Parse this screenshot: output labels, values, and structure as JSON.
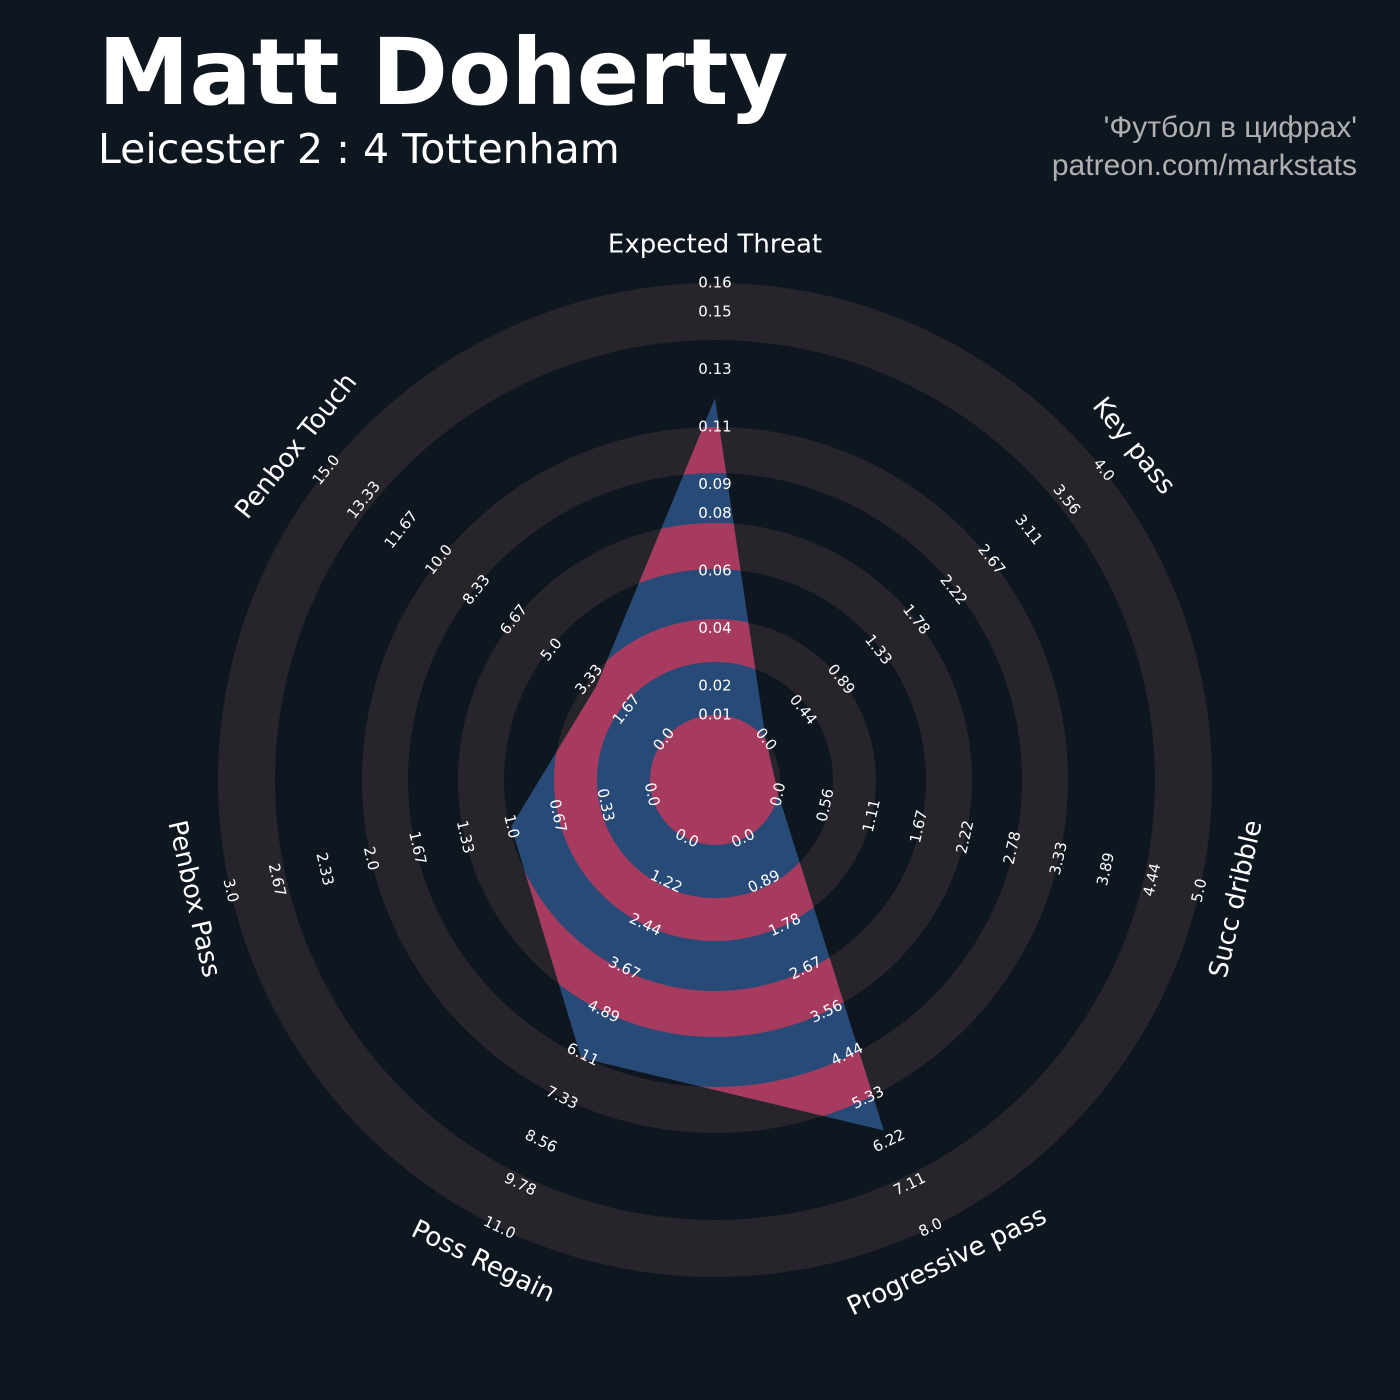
{
  "header": {
    "title": "Matt Doherty",
    "subtitle": "Leicester 2 : 4 Tottenham",
    "credit": "'Футбол в цифрах'",
    "link": "patreon.com/markstats"
  },
  "chart_data": {
    "type": "radar",
    "categories": [
      "Expected Threat",
      "Key pass",
      "Succ dribble",
      "Progressive pass",
      "Poss Regain",
      "Penbox Pass",
      "Penbox Touch"
    ],
    "values": [
      0.12,
      0,
      0,
      6,
      6.2,
      1,
      3
    ],
    "ranges": [
      [
        0.01,
        0.16
      ],
      [
        0,
        4
      ],
      [
        0,
        5
      ],
      [
        0,
        8
      ],
      [
        0,
        11
      ],
      [
        0,
        3
      ],
      [
        0,
        15
      ]
    ],
    "ticks": [
      [
        0.01,
        0.02,
        0.04,
        0.06,
        0.08,
        0.09,
        0.11,
        0.13,
        0.15,
        0.16
      ],
      [
        {
          "value": 0,
          "label": "0.0"
        },
        0.44,
        0.89,
        1.33,
        1.78,
        2.22,
        2.67,
        3.11,
        3.56,
        {
          "value": 4,
          "label": "4.0"
        }
      ],
      [
        {
          "value": 0,
          "label": "0.0"
        },
        0.56,
        1.11,
        1.67,
        2.22,
        2.78,
        3.33,
        3.89,
        4.44,
        {
          "value": 5,
          "label": "5.0"
        }
      ],
      [
        {
          "value": 0,
          "label": "0.0"
        },
        0.89,
        1.78,
        2.67,
        3.56,
        4.44,
        5.33,
        6.22,
        7.11,
        {
          "value": 8,
          "label": "8.0"
        }
      ],
      [
        {
          "value": 0,
          "label": "0.0"
        },
        1.22,
        2.44,
        3.67,
        4.89,
        6.11,
        7.33,
        8.56,
        9.78,
        {
          "value": 11,
          "label": "11.0"
        }
      ],
      [
        {
          "value": 0,
          "label": "0.0"
        },
        0.33,
        0.67,
        {
          "value": 1,
          "label": "1.0"
        },
        1.33,
        1.67,
        {
          "value": 2,
          "label": "2.0"
        },
        2.33,
        2.67,
        {
          "value": 3,
          "label": "3.0"
        }
      ],
      [
        {
          "value": 0,
          "label": "0.0"
        },
        1.67,
        3.33,
        {
          "value": 5,
          "label": "5.0"
        },
        6.67,
        8.33,
        {
          "value": 10,
          "label": "10.0"
        },
        11.67,
        13.33,
        {
          "value": 15,
          "label": "15.0"
        }
      ]
    ],
    "fill_color": "#284a77",
    "ring_fill_color": "#a63b5f",
    "ring_color": "#28242b"
  }
}
